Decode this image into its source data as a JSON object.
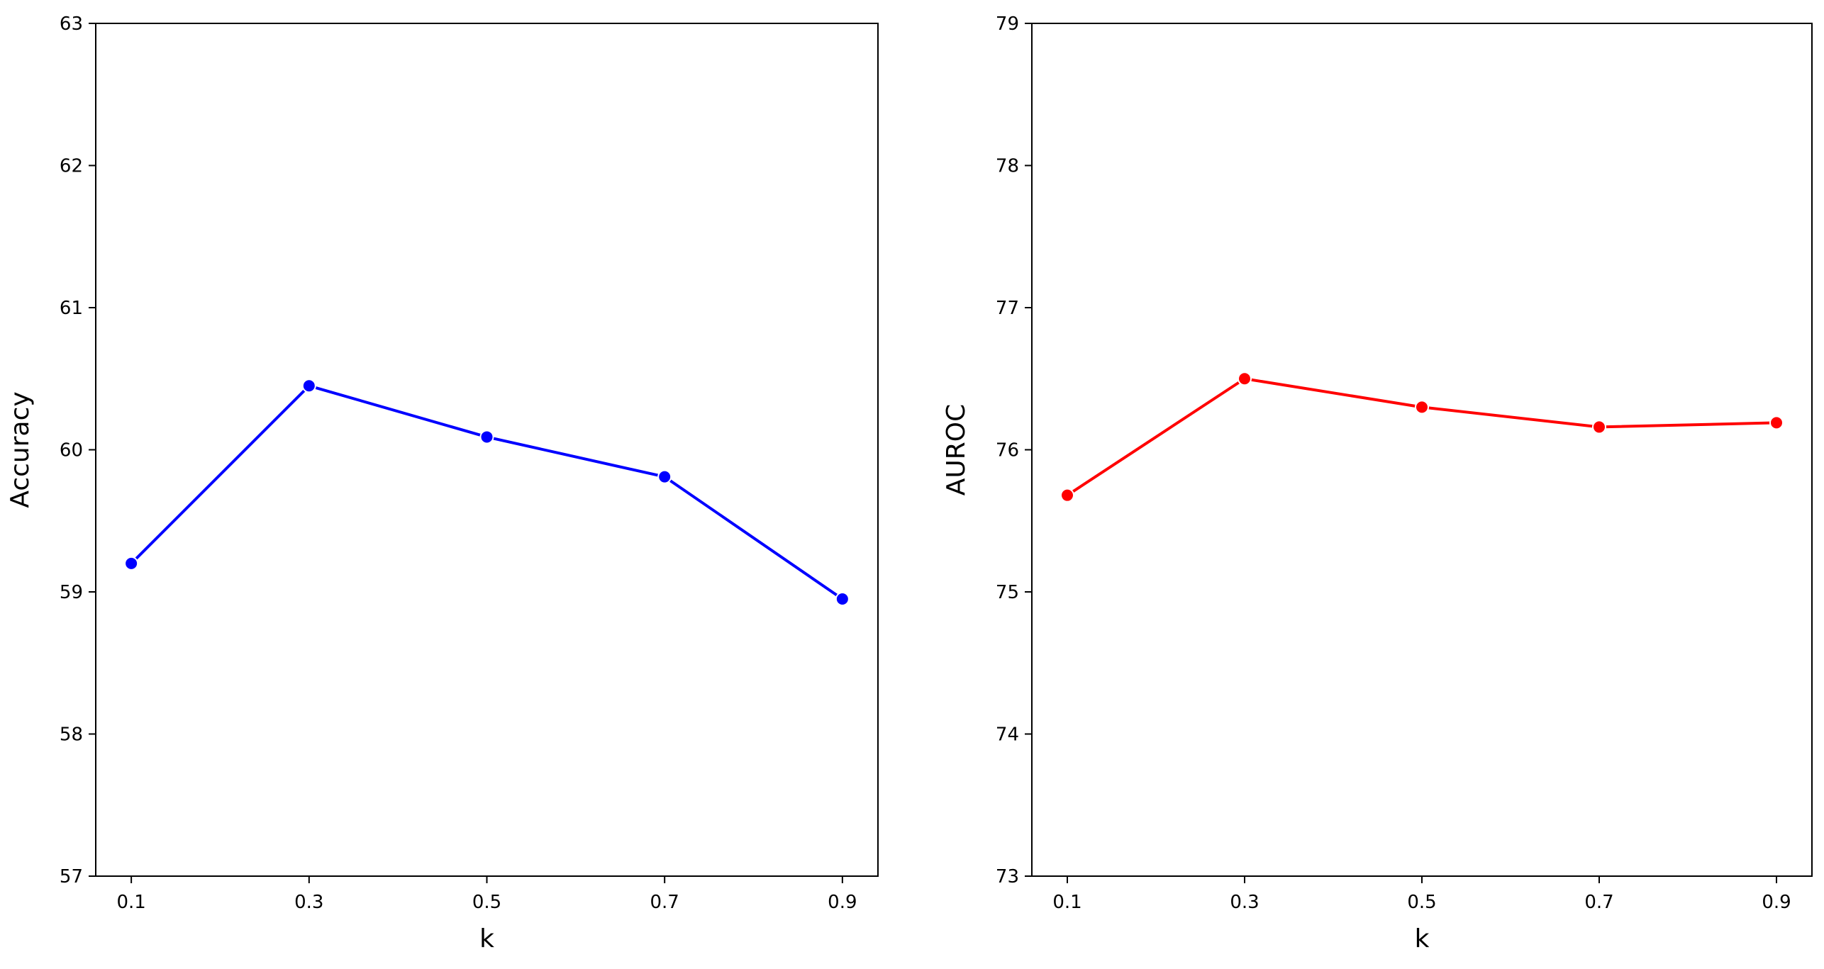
{
  "chart_data": [
    {
      "type": "line",
      "xlabel": "k",
      "ylabel": "Accuracy",
      "x": [
        0.1,
        0.3,
        0.5,
        0.7,
        0.9
      ],
      "x_tick_labels": [
        "0.1",
        "0.3",
        "0.5",
        "0.7",
        "0.9"
      ],
      "y_ticks": [
        57,
        58,
        59,
        60,
        61,
        62,
        63
      ],
      "y_tick_labels": [
        "57",
        "58",
        "59",
        "60",
        "61",
        "62",
        "63"
      ],
      "ylim": [
        57,
        63
      ],
      "series": [
        {
          "values": [
            59.2,
            60.45,
            60.09,
            59.81,
            58.95
          ],
          "color": "#0000ff"
        }
      ],
      "grid": false
    },
    {
      "type": "line",
      "xlabel": "k",
      "ylabel": "AUROC",
      "x": [
        0.1,
        0.3,
        0.5,
        0.7,
        0.9
      ],
      "x_tick_labels": [
        "0.1",
        "0.3",
        "0.5",
        "0.7",
        "0.9"
      ],
      "y_ticks": [
        73,
        74,
        75,
        76,
        77,
        78,
        79
      ],
      "y_tick_labels": [
        "73",
        "74",
        "75",
        "76",
        "77",
        "78",
        "79"
      ],
      "ylim": [
        73,
        79
      ],
      "series": [
        {
          "values": [
            75.68,
            76.5,
            76.3,
            76.16,
            76.19
          ],
          "color": "#ff0000"
        }
      ],
      "grid": false
    }
  ]
}
